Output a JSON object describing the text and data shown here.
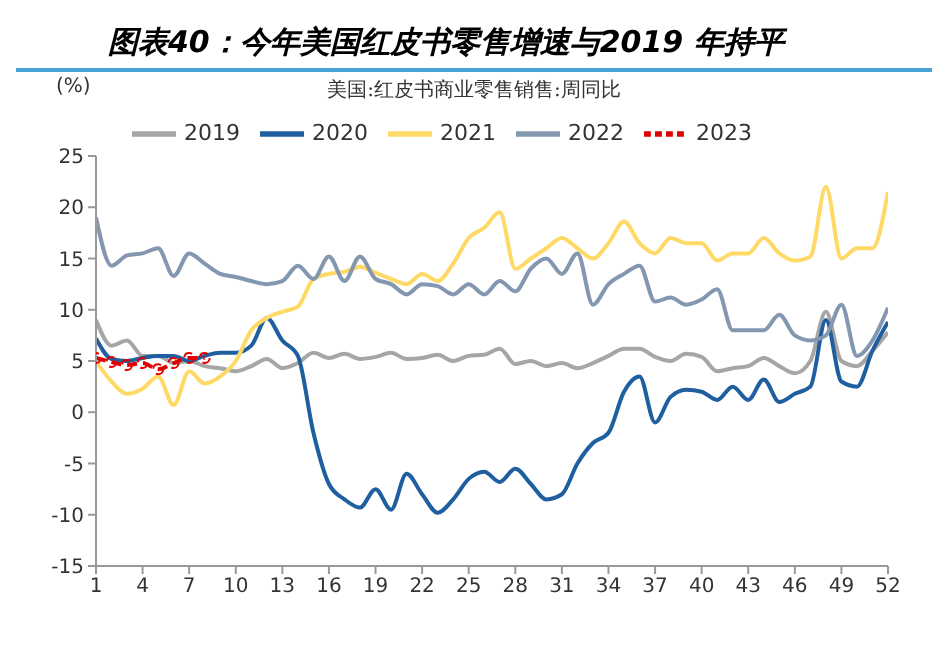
{
  "chart_data": {
    "type": "line",
    "title": "图表40：今年美国红皮书零售增速与2019 年持平",
    "subtitle": "美国:红皮书商业零售销售:周同比",
    "ylabel": "(%)",
    "x": [
      1,
      2,
      3,
      4,
      5,
      6,
      7,
      8,
      9,
      10,
      11,
      12,
      13,
      14,
      15,
      16,
      17,
      18,
      19,
      20,
      21,
      22,
      23,
      24,
      25,
      26,
      27,
      28,
      29,
      30,
      31,
      32,
      33,
      34,
      35,
      36,
      37,
      38,
      39,
      40,
      41,
      42,
      43,
      44,
      45,
      46,
      47,
      48,
      49,
      50,
      51,
      52
    ],
    "xlim": [
      1,
      52
    ],
    "xticks": [
      1,
      4,
      7,
      10,
      13,
      16,
      19,
      22,
      25,
      28,
      31,
      34,
      37,
      40,
      43,
      46,
      49,
      52
    ],
    "ylim": [
      -15,
      25
    ],
    "yticks": [
      -15,
      -10,
      -5,
      0,
      5,
      10,
      15,
      20,
      25
    ],
    "grid": false,
    "legend": "top",
    "marker": "none",
    "line_style": "solid",
    "series": [
      {
        "name": "2019",
        "color": "#a6a6a6",
        "values": [
          9,
          6.5,
          7,
          5.5,
          5.5,
          4.8,
          5,
          4.5,
          4.3,
          4,
          4.5,
          5.2,
          4.3,
          4.8,
          5.8,
          5.3,
          5.7,
          5.2,
          5.4,
          5.8,
          5.2,
          5.3,
          5.6,
          5,
          5.5,
          5.6,
          6.2,
          4.7,
          5,
          4.5,
          4.8,
          4.3,
          4.8,
          5.5,
          6.2,
          6.2,
          5.4,
          5,
          5.7,
          5.4,
          4,
          4.3,
          4.5,
          5.3,
          4.5,
          3.8,
          5,
          9.8,
          5,
          4.5,
          6,
          7.8
        ]
      },
      {
        "name": "2020",
        "color": "#1f5fa0",
        "values": [
          7.2,
          5.2,
          5,
          5.3,
          5.5,
          5.5,
          5,
          5.5,
          5.8,
          5.8,
          6.5,
          9.2,
          7,
          5.5,
          -2,
          -7,
          -8.5,
          -9.3,
          -7.5,
          -9.5,
          -6,
          -8,
          -9.8,
          -8.5,
          -6.5,
          -5.8,
          -6.8,
          -5.5,
          -7,
          -8.5,
          -8,
          -5,
          -3,
          -2,
          2,
          3.5,
          -1,
          1.5,
          2.2,
          2,
          1.2,
          2.5,
          1.2,
          3.2,
          1,
          1.8,
          2.5,
          9,
          3,
          2.5,
          6,
          8.8
        ]
      },
      {
        "name": "2021",
        "color": "#ffd966",
        "values": [
          5,
          3,
          1.8,
          2.3,
          3.5,
          0.7,
          4,
          2.8,
          3.5,
          5,
          8,
          9.2,
          9.8,
          10.3,
          13,
          13.5,
          13.7,
          14.2,
          13.6,
          13,
          12.5,
          13.5,
          12.8,
          14.5,
          17,
          18,
          19.5,
          14,
          15,
          16,
          17,
          16,
          15,
          16.5,
          18.6,
          16.5,
          15.5,
          17,
          16.5,
          16.5,
          14.8,
          15.5,
          15.5,
          17,
          15.5,
          14.8,
          15.2,
          22,
          15,
          16,
          16,
          21.5
        ]
      },
      {
        "name": "2022",
        "color": "#8497b0",
        "values": [
          19,
          14.3,
          15.3,
          15.5,
          16,
          13.3,
          15.5,
          14.5,
          13.5,
          13.2,
          12.8,
          12.5,
          12.8,
          14.3,
          13,
          15.2,
          12.8,
          15.2,
          13,
          12.5,
          11.5,
          12.5,
          12.3,
          11.5,
          12.5,
          11.5,
          12.8,
          11.8,
          14,
          15,
          13.5,
          15.5,
          10.5,
          12.5,
          13.5,
          14.3,
          10.8,
          11.2,
          10.5,
          11,
          12,
          8,
          8,
          8,
          9.5,
          7.5,
          7,
          7.5,
          10.5,
          5.5,
          7,
          10.2
        ]
      },
      {
        "name": "2023",
        "color": "#e00000",
        "x": [
          1,
          2,
          3,
          4,
          5,
          6,
          7,
          8
        ],
        "values": [
          5.3,
          4.9,
          4.6,
          4.8,
          4.2,
          4.8,
          5.3,
          5.3
        ],
        "marker": "circle",
        "line_style": "dashed"
      }
    ]
  }
}
